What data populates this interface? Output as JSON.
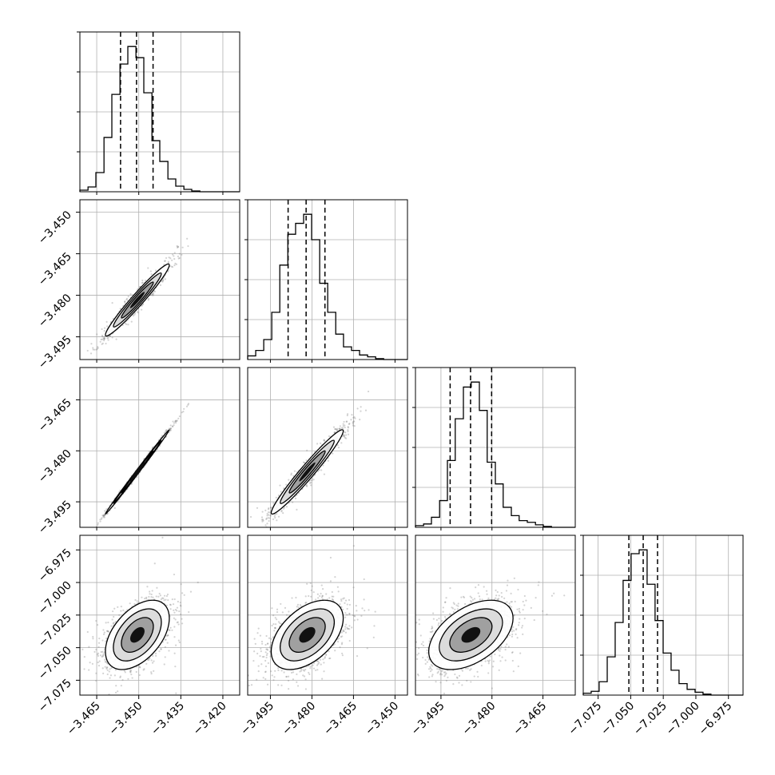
{
  "chart_data": {
    "type": "corner",
    "grid": true,
    "n_params": 4,
    "colors": {
      "axes": "#000000",
      "grid": "#b0b0b0",
      "scatter": "#808080",
      "hist": "#000000"
    },
    "params": [
      {
        "index": 0,
        "range": [
          -3.471,
          -3.414
        ],
        "ticks": [
          -3.465,
          -3.45,
          -3.435,
          -3.42
        ],
        "tick_labels": [
          "−3.465",
          "−3.450",
          "−3.435",
          "−3.420"
        ],
        "quantiles": [
          -3.4565,
          -3.4508,
          -3.4449
        ]
      },
      {
        "index": 1,
        "range": [
          -3.5032,
          -3.4455
        ],
        "ticks": [
          -3.495,
          -3.48,
          -3.465,
          -3.45
        ],
        "tick_labels": [
          "−3.495",
          "−3.480",
          "−3.465",
          "−3.450"
        ],
        "quantiles": [
          -3.4886,
          -3.4821,
          -3.4753
        ]
      },
      {
        "index": 2,
        "range": [
          -3.5025,
          -3.4555
        ],
        "ticks": [
          -3.495,
          -3.48,
          -3.465
        ],
        "tick_labels": [
          "−3.495",
          "−3.480",
          "−3.465"
        ],
        "quantiles": [
          -3.4923,
          -3.4863,
          -3.4801
        ]
      },
      {
        "index": 3,
        "range": [
          -7.0864,
          -6.9638
        ],
        "ticks": [
          -7.075,
          -7.05,
          -7.025,
          -7.0,
          -6.975
        ],
        "tick_labels": [
          "−7.075",
          "−7.050",
          "−7.025",
          "−7.000",
          "−6.975"
        ],
        "quantiles": [
          -7.0514,
          -7.0404,
          -7.0294
        ]
      }
    ],
    "histograms": [
      {
        "param": 0,
        "bins_edges": [
          -3.471,
          -3.4681,
          -3.4653,
          -3.4624,
          -3.4596,
          -3.4567,
          -3.4539,
          -3.451,
          -3.4482,
          -3.4453,
          -3.4425,
          -3.4396,
          -3.4368,
          -3.4339,
          -3.4311,
          -3.4282,
          -3.4254,
          -3.4225,
          -3.4197,
          -3.4168,
          -3.414
        ],
        "counts": [
          2,
          6,
          24,
          68,
          122,
          160,
          182,
          168,
          124,
          64,
          38,
          16,
          7,
          3,
          1,
          0,
          0,
          0,
          0,
          0
        ]
      },
      {
        "param": 1,
        "bins_edges": [
          -3.5032,
          -3.5003,
          -3.4974,
          -3.4945,
          -3.4916,
          -3.4887,
          -3.4859,
          -3.483,
          -3.4801,
          -3.4772,
          -3.4743,
          -3.4714,
          -3.4686,
          -3.4657,
          -3.4628,
          -3.4599,
          -3.457,
          -3.4541,
          -3.4513,
          -3.4484,
          -3.4455
        ],
        "counts": [
          4,
          10,
          22,
          52,
          104,
          138,
          150,
          160,
          132,
          84,
          52,
          28,
          14,
          10,
          5,
          3,
          1,
          0,
          0,
          0
        ]
      },
      {
        "param": 2,
        "bins_edges": [
          -3.5025,
          -3.5001,
          -3.4978,
          -3.4954,
          -3.4931,
          -3.4908,
          -3.4884,
          -3.4861,
          -3.4837,
          -3.4814,
          -3.479,
          -3.4767,
          -3.4743,
          -3.472,
          -3.4696,
          -3.4672,
          -3.4649,
          -3.4625,
          -3.4602,
          -3.4578,
          -3.4555
        ],
        "counts": [
          2,
          4,
          12,
          32,
          80,
          130,
          168,
          174,
          140,
          78,
          52,
          24,
          14,
          8,
          6,
          3,
          1,
          0,
          0,
          0
        ]
      },
      {
        "param": 3,
        "bins_edges": [
          -7.0864,
          -7.0803,
          -7.0742,
          -7.068,
          -7.0619,
          -7.0558,
          -7.0497,
          -7.0435,
          -7.0374,
          -7.0313,
          -7.0251,
          -7.019,
          -7.0129,
          -7.0067,
          -7.0006,
          -6.9945,
          -6.9884,
          -6.9822,
          -6.9761,
          -6.97,
          -6.9638
        ],
        "counts": [
          2,
          4,
          14,
          40,
          76,
          120,
          148,
          152,
          116,
          78,
          44,
          26,
          12,
          6,
          3,
          1,
          0,
          0,
          0,
          0
        ]
      }
    ],
    "pairs": [
      {
        "x": 0,
        "y": 1,
        "mean": [
          -3.4505,
          -3.4817
        ],
        "sd": [
          0.0057,
          0.0065
        ],
        "corr": 0.97,
        "n_points": 1100
      },
      {
        "x": 0,
        "y": 2,
        "mean": [
          -3.4505,
          -3.4862
        ],
        "sd": [
          0.0057,
          0.0062
        ],
        "corr": 0.998,
        "n_points": 1100
      },
      {
        "x": 1,
        "y": 2,
        "mean": [
          -3.4817,
          -3.4862
        ],
        "sd": [
          0.0065,
          0.0062
        ],
        "corr": 0.97,
        "n_points": 1100
      },
      {
        "x": 0,
        "y": 3,
        "mean": [
          -3.4505,
          -7.0402
        ],
        "sd": [
          0.0057,
          0.0133
        ],
        "corr": 0.48,
        "n_points": 1500
      },
      {
        "x": 1,
        "y": 3,
        "mean": [
          -3.4817,
          -7.0402
        ],
        "sd": [
          0.0065,
          0.0133
        ],
        "corr": 0.48,
        "n_points": 1500
      },
      {
        "x": 2,
        "y": 3,
        "mean": [
          -3.4862,
          -7.0402
        ],
        "sd": [
          0.0062,
          0.0133
        ],
        "corr": 0.48,
        "n_points": 1500
      }
    ],
    "contour_levels_sigma": [
      1.0,
      1.5,
      2.0
    ]
  }
}
